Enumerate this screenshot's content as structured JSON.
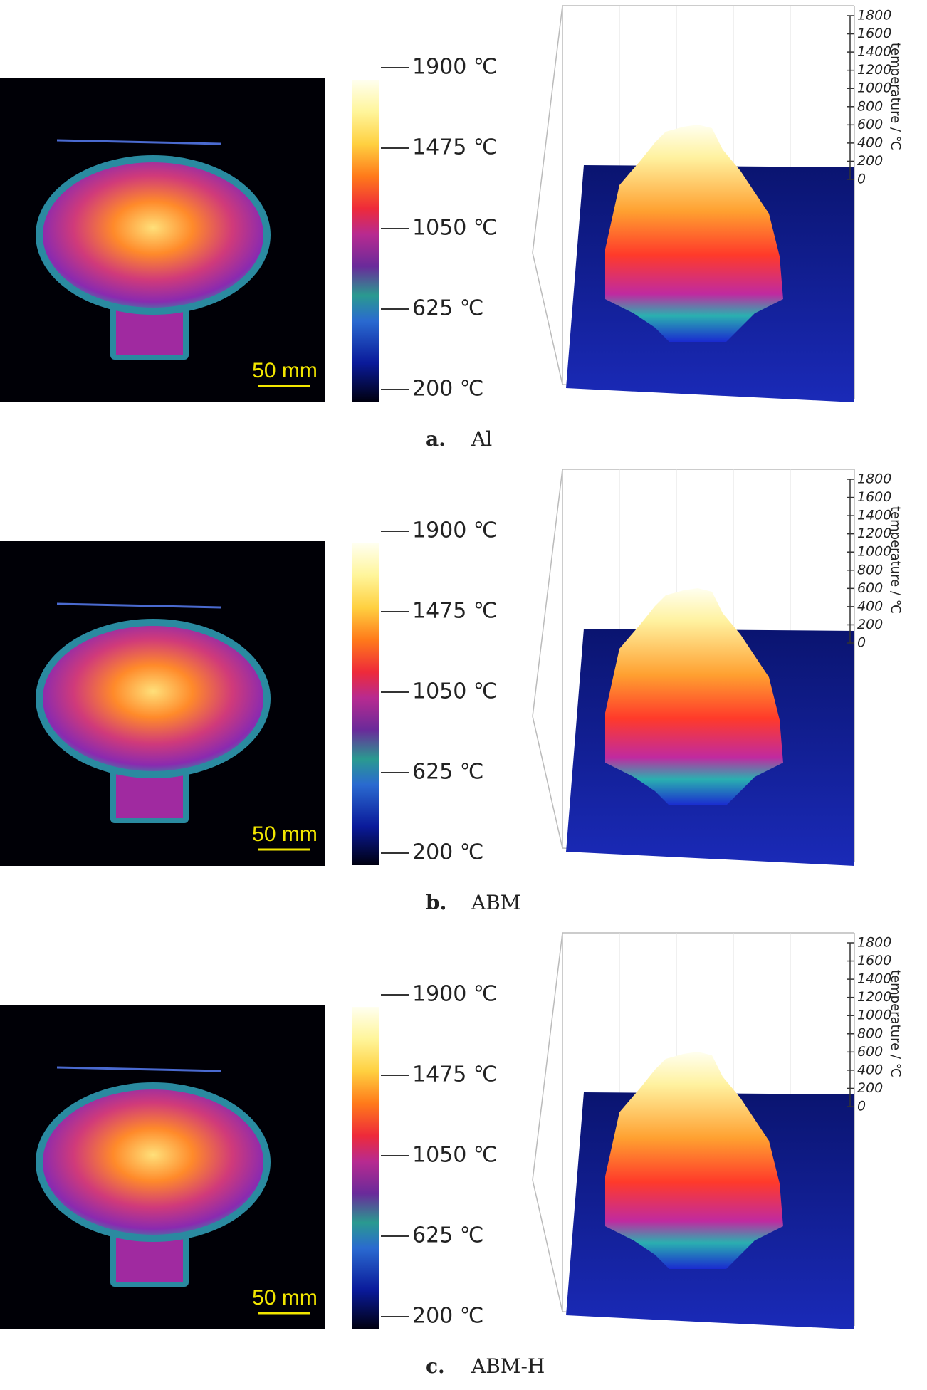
{
  "panels": [
    {
      "label": "a.",
      "name": "Al",
      "scale_bar": "50 mm",
      "colorbar_ticks": [
        "1900 ℃",
        "1475 ℃",
        "1050 ℃",
        "625 ℃",
        "200 ℃"
      ],
      "z_ticks": [
        "1800",
        "1600",
        "1400",
        "1200",
        "1000",
        "800",
        "600",
        "400",
        "200",
        "0"
      ],
      "z_label": "temperature / ℃"
    },
    {
      "label": "b.",
      "name": "ABM",
      "scale_bar": "50 mm",
      "colorbar_ticks": [
        "1900 ℃",
        "1475 ℃",
        "1050 ℃",
        "625 ℃",
        "200 ℃"
      ],
      "z_ticks": [
        "1800",
        "1600",
        "1400",
        "1200",
        "1000",
        "800",
        "600",
        "400",
        "200",
        "0"
      ],
      "z_label": "temperature / ℃"
    },
    {
      "label": "c.",
      "name": "ABM-H",
      "scale_bar": "50 mm",
      "colorbar_ticks": [
        "1900 ℃",
        "1475 ℃",
        "1050 ℃",
        "625 ℃",
        "200 ℃"
      ],
      "z_ticks": [
        "1800",
        "1600",
        "1400",
        "1200",
        "1000",
        "800",
        "600",
        "400",
        "200",
        "0"
      ],
      "z_label": "temperature / ℃"
    }
  ]
}
